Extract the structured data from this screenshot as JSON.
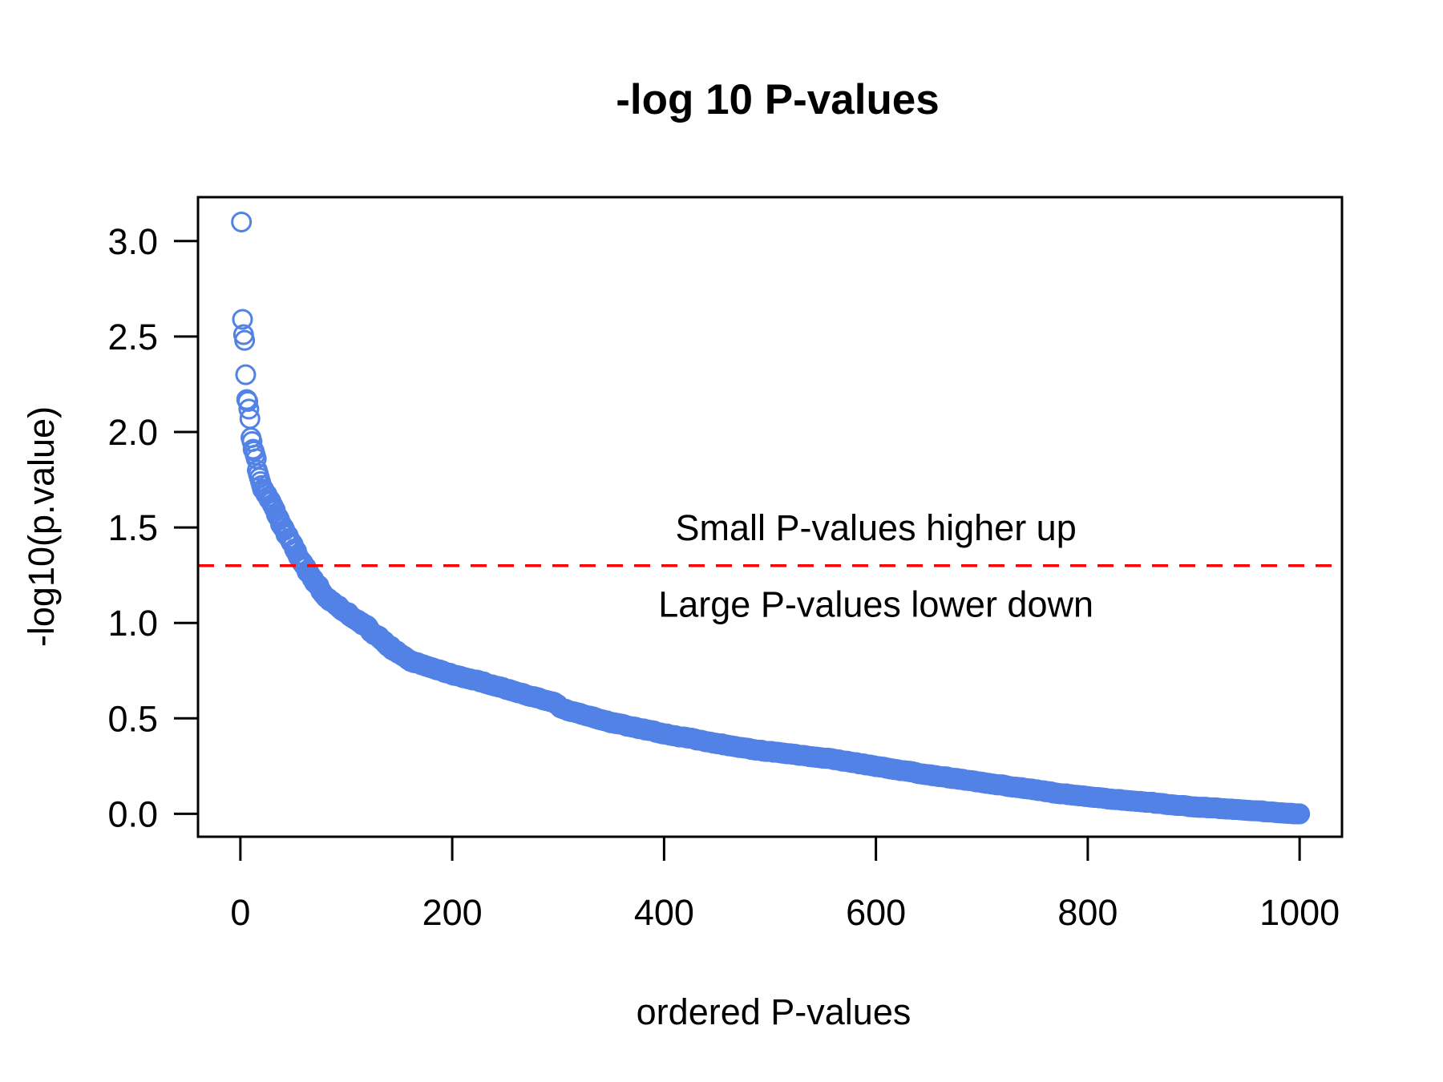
{
  "chart_data": {
    "type": "scatter",
    "title": "-log 10 P-values",
    "xlabel": "ordered P-values",
    "ylabel": "-log10(p.value)",
    "xlim": [
      -40,
      1040
    ],
    "ylim": [
      -0.12,
      3.23
    ],
    "x_ticks": [
      0,
      200,
      400,
      600,
      800,
      1000
    ],
    "x_tick_labels": [
      "0",
      "200",
      "400",
      "600",
      "800",
      "1000"
    ],
    "y_ticks": [
      0.0,
      0.5,
      1.0,
      1.5,
      2.0,
      2.5,
      3.0
    ],
    "y_tick_labels": [
      "0.0",
      "0.5",
      "1.0",
      "1.5",
      "2.0",
      "2.5",
      "3.0"
    ],
    "grid": false,
    "legend": "none",
    "n_points": 1000,
    "marker": "open-circle",
    "point_color": "#5282E6",
    "leading_points": {
      "x": [
        1,
        2,
        3,
        4,
        5,
        6,
        7,
        8,
        9,
        10,
        11,
        12,
        13,
        14,
        15,
        16,
        17,
        18,
        19,
        20
      ],
      "y": [
        3.1,
        2.59,
        2.51,
        2.48,
        2.3,
        2.17,
        2.16,
        2.12,
        2.07,
        1.97,
        1.95,
        1.91,
        1.9,
        1.88,
        1.86,
        1.8,
        1.78,
        1.76,
        1.74,
        1.72
      ]
    },
    "curve_samples": {
      "x": [
        20,
        30,
        40,
        50,
        60,
        70,
        80,
        93,
        110,
        128,
        145,
        161,
        200,
        229,
        260,
        297,
        304,
        350,
        400,
        430,
        480,
        556,
        600,
        644,
        682,
        720,
        770,
        820,
        860,
        896,
        940,
        970,
        1000
      ],
      "y": [
        1.72,
        1.62,
        1.5,
        1.4,
        1.3,
        1.22,
        1.14,
        1.08,
        1.02,
        0.94,
        0.86,
        0.8,
        0.73,
        0.69,
        0.64,
        0.58,
        0.55,
        0.48,
        0.42,
        0.39,
        0.34,
        0.29,
        0.25,
        0.21,
        0.18,
        0.15,
        0.11,
        0.08,
        0.06,
        0.04,
        0.025,
        0.012,
        0.0
      ]
    },
    "reference_line": {
      "y": 1.3,
      "orientation": "horizontal",
      "style": "dashed",
      "color": "#FF0000"
    },
    "annotations": [
      {
        "text": "Small P-values higher up",
        "x": 600,
        "y": 1.5
      },
      {
        "text": "Large P-values lower down",
        "x": 600,
        "y": 1.1
      }
    ]
  }
}
